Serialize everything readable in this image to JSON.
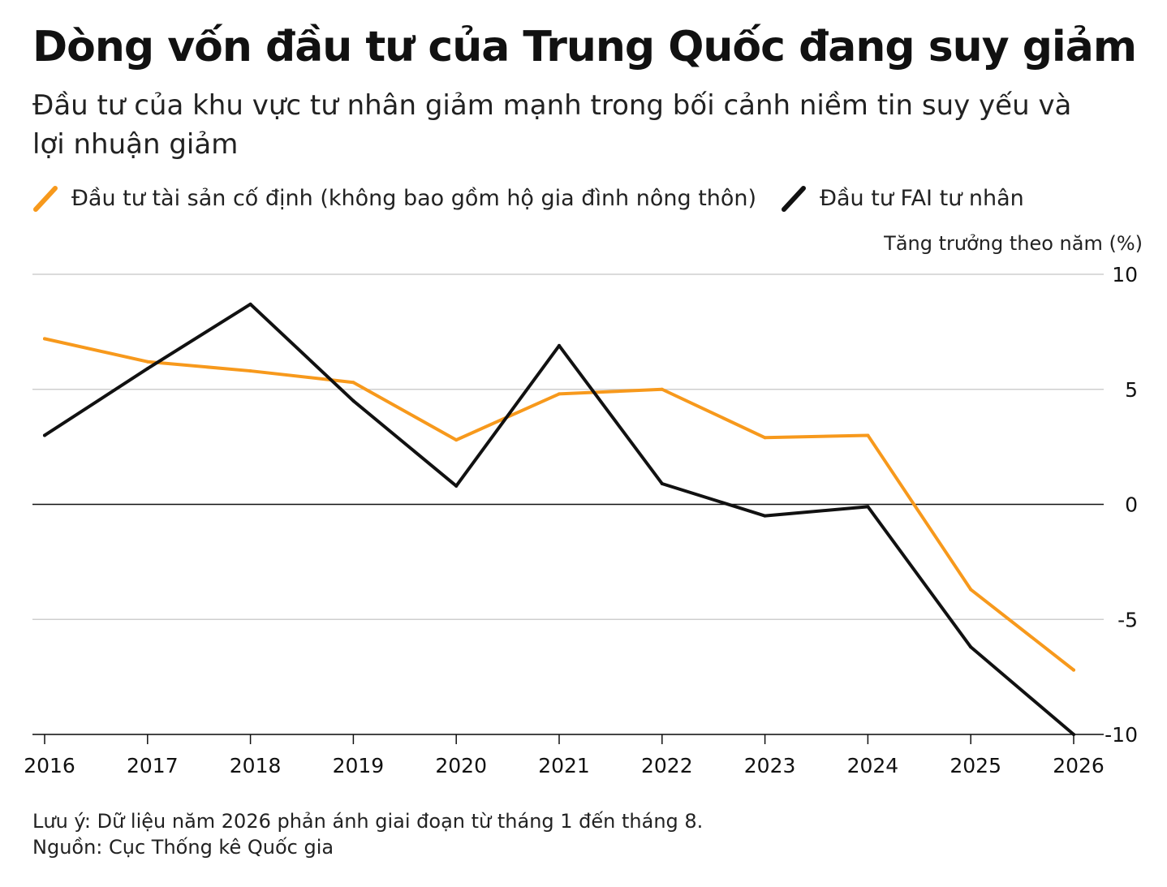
{
  "title": "Dòng vốn đầu tư của Trung Quốc đang suy giảm",
  "subtitle": "Đầu tư của khu vực tư nhân giảm mạnh trong bối cảnh niềm tin suy yếu và lợi nhuận giảm",
  "legend": [
    {
      "label": "Đầu tư tài sản cố định (không bao gồm hộ gia đình nông thôn)",
      "color": "#F7991C"
    },
    {
      "label": "Đầu tư FAI tư nhân",
      "color": "#111111"
    }
  ],
  "unit_label": "Tăng trưởng theo năm (%)",
  "notes": {
    "note": "Lưu ý: Dữ liệu năm 2026 phản ánh giai đoạn từ tháng 1 đến tháng 8.",
    "source": "Nguồn: Cục Thống kê Quốc gia"
  },
  "chart_data": {
    "type": "line",
    "x": [
      "2016",
      "2017",
      "2018",
      "2019",
      "2020",
      "2021",
      "2022",
      "2023",
      "2024",
      "2025",
      "2026"
    ],
    "series": [
      {
        "name": "Đầu tư tài sản cố định (không bao gồm hộ gia đình nông thôn)",
        "color": "#F7991C",
        "values": [
          7.2,
          6.2,
          5.8,
          5.3,
          2.8,
          4.8,
          5.0,
          2.9,
          3.0,
          -3.7,
          -7.2
        ]
      },
      {
        "name": "Đầu tư FAI tư nhân",
        "color": "#111111",
        "values": [
          3.0,
          5.9,
          8.7,
          4.5,
          0.8,
          6.9,
          0.9,
          -0.5,
          -0.1,
          -6.2,
          -10.0
        ]
      }
    ],
    "yticks": [
      "10",
      "5",
      "0",
      "-5",
      "-10"
    ],
    "ylim": [
      -10,
      10
    ],
    "grid": true,
    "legend_position": "top-left"
  }
}
